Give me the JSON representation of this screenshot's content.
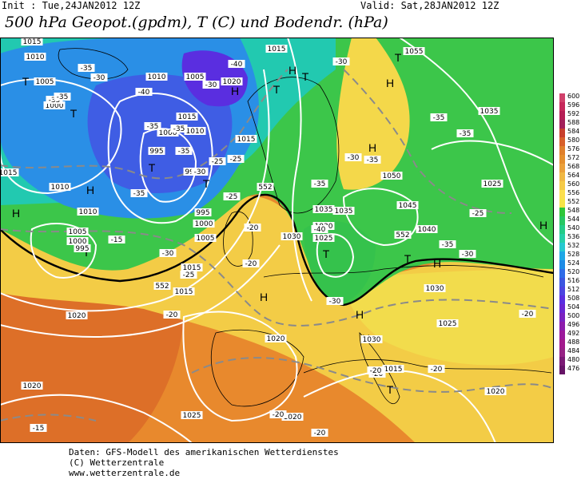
{
  "header": {
    "init": "Init : Tue,24JAN2012 12Z",
    "valid": "Valid: Sat,28JAN2012 12Z",
    "title": "500 hPa Geopot.(gpdm), T (C) und Bodendr. (hPa)"
  },
  "legend": {
    "values": [
      "600",
      "596",
      "592",
      "588",
      "584",
      "580",
      "576",
      "572",
      "568",
      "564",
      "560",
      "556",
      "552",
      "548",
      "544",
      "540",
      "536",
      "532",
      "528",
      "524",
      "520",
      "516",
      "512",
      "508",
      "504",
      "500",
      "496",
      "492",
      "488",
      "484",
      "480",
      "476"
    ],
    "colors": [
      "#d0406a",
      "#c6285a",
      "#b51e55",
      "#a2205a",
      "#c83f2c",
      "#d8602a",
      "#e0802c",
      "#e58f2e",
      "#eba03a",
      "#f0b844",
      "#f5ca48",
      "#fbdf4e",
      "#f6e447",
      "#2fc73a",
      "#27c763",
      "#24cc88",
      "#26d0a8",
      "#26c9d0",
      "#1ea7e6",
      "#1d8be6",
      "#2f6ce8",
      "#3c55e0",
      "#4c44e0",
      "#5a2ee0",
      "#6a26d2",
      "#7a22c0",
      "#8c1cac",
      "#9c1a9c",
      "#a21a8c",
      "#962284",
      "#7a1a74",
      "#661466"
    ]
  },
  "map_labels": {
    "highs": [
      "H",
      "H",
      "H",
      "H",
      "H",
      "H",
      "H",
      "H",
      "H",
      "H",
      "H"
    ],
    "lows": [
      "T",
      "T",
      "T",
      "T",
      "T",
      "T",
      "T",
      "T",
      "T",
      "T",
      "T"
    ],
    "isobars": [
      "1015",
      "1010",
      "1005",
      "1000",
      "1010",
      "1005",
      "1015",
      "1020",
      "1015",
      "1055",
      "1035",
      "995",
      "1000",
      "990",
      "995",
      "1000",
      "1005",
      "1010",
      "1015",
      "1010",
      "1005",
      "1000",
      "995",
      "1010",
      "1015",
      "1020",
      "1015",
      "1050",
      "1045",
      "1035",
      "1025",
      "1030",
      "1035",
      "1040",
      "1030",
      "1030",
      "1025",
      "1025",
      "1030",
      "1020",
      "1020",
      "1025",
      "1020",
      "1015",
      "1020",
      "1015"
    ],
    "temps": [
      "-35",
      "-30",
      "-35",
      "-40",
      "-30",
      "-40",
      "-35",
      "-35",
      "-35",
      "-30",
      "-25",
      "-35",
      "-35",
      "-30",
      "-25",
      "-35",
      "-30",
      "-35",
      "-40",
      "-35",
      "-35",
      "-25",
      "-30",
      "-35",
      "-30",
      "-25",
      "-20",
      "-25",
      "-20",
      "-15",
      "-20",
      "-20",
      "-20",
      "-20",
      "-20",
      "-30",
      "-20",
      "-20",
      "-15"
    ],
    "geopot": [
      "552",
      "552",
      "552"
    ]
  },
  "footer": {
    "line1": "Daten: GFS-Modell des amerikanischen Wetterdienstes",
    "line2": "(C) Wetterzentrale",
    "line3": "www.wetterzentrale.de"
  }
}
